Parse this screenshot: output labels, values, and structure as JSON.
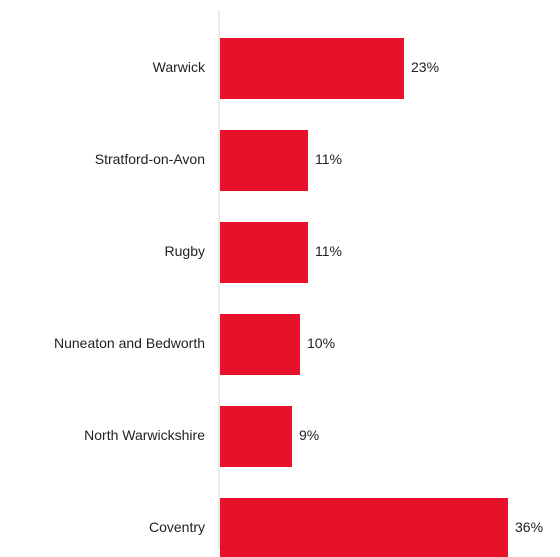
{
  "chart_data": {
    "type": "bar",
    "orientation": "horizontal",
    "categories": [
      "Warwick",
      "Stratford-on-Avon",
      "Rugby",
      "Nuneaton and Bedworth",
      "North Warwickshire",
      "Coventry"
    ],
    "values": [
      23,
      11,
      11,
      10,
      9,
      36
    ],
    "value_labels": [
      "23%",
      "11%",
      "11%",
      "10%",
      "9%",
      "36%"
    ],
    "unit": "%",
    "title": "",
    "xlabel": "",
    "ylabel": "",
    "xlim": [
      0,
      36
    ],
    "grid": false,
    "legend": "none",
    "bar_color": "#E8102A",
    "axis_color": "#d9d9d9"
  }
}
